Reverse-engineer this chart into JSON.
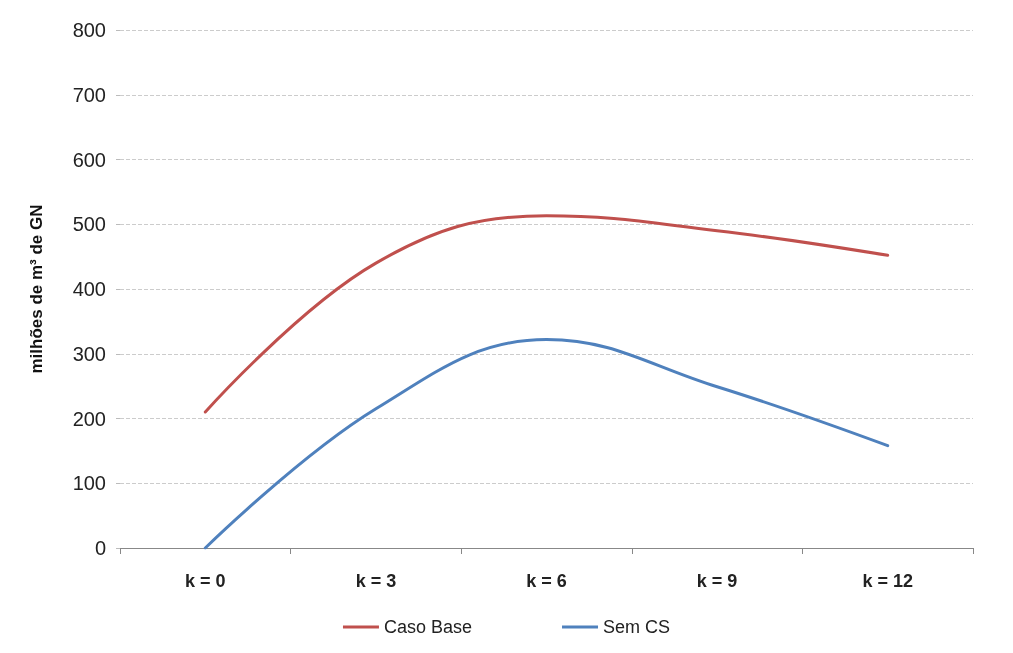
{
  "chart_data": {
    "type": "line",
    "ylabel": "milhões de m³ de GN",
    "categories": [
      "k = 0",
      "k = 3",
      "k = 6",
      "k = 9",
      "k = 12"
    ],
    "series": [
      {
        "name": "Caso Base",
        "color": "#c0504d",
        "values": [
          210,
          440,
          513,
          490,
          452
        ]
      },
      {
        "name": "Sem CS",
        "color": "#4f81bd",
        "values": [
          0,
          215,
          322,
          249,
          158
        ]
      }
    ],
    "ylim": [
      0,
      800
    ],
    "yticks": [
      0,
      100,
      200,
      300,
      400,
      500,
      600,
      700,
      800
    ],
    "grid": "y",
    "legend": "bottom",
    "marker": "none",
    "line_style": "solid"
  }
}
